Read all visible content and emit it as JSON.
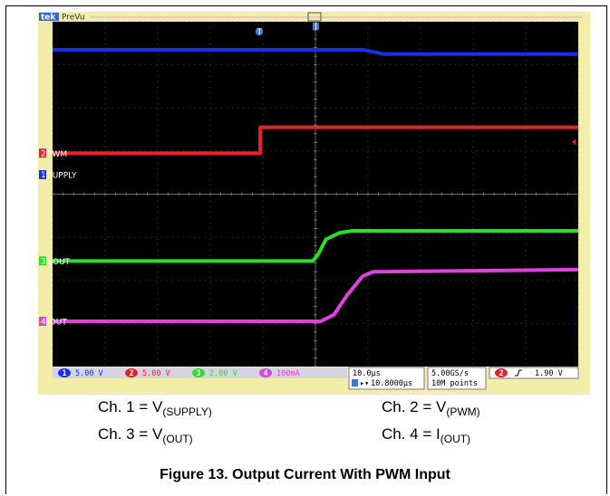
{
  "scope": {
    "brand": "tek",
    "mode": "PreVu",
    "trigger_marker": "T",
    "colors": {
      "screen_bg": "#000000",
      "bezel": "#f2eea8",
      "grid": "#6a6a6a",
      "ch1": "#1a2ee8",
      "ch2": "#e8202a",
      "ch3": "#28e028",
      "ch4": "#e040e0"
    },
    "channels": [
      {
        "id": "1",
        "label": "SUPPLY",
        "scale": "5.00 V",
        "color": "#1a2ee8"
      },
      {
        "id": "2",
        "label": "PWM",
        "scale": "5.00 V",
        "color": "#e8202a"
      },
      {
        "id": "3",
        "label": "VOUT",
        "scale": "2.00 V",
        "color": "#28e028"
      },
      {
        "id": "4",
        "label": "IOUT",
        "scale": "100mA",
        "color": "#e040e0"
      }
    ],
    "timebase": "10.0µs",
    "delay": "10.8000µs",
    "sample_rate": "5.00GS/s",
    "record_length": "10M points",
    "trigger_source": "2",
    "trigger_level": "1.90 V"
  },
  "chart_data": {
    "type": "line",
    "title": "",
    "x_divisions": 10,
    "y_divisions": 8,
    "x_unit": "div",
    "series": [
      {
        "name": "SUPPLY",
        "color": "#1a2ee8",
        "x": [
          0,
          5.9,
          6.3,
          10
        ],
        "y": [
          7.35,
          7.35,
          7.25,
          7.25
        ]
      },
      {
        "name": "PWM",
        "color": "#e8202a",
        "x": [
          0,
          3.95,
          3.95,
          10
        ],
        "y": [
          4.95,
          4.95,
          5.55,
          5.55
        ]
      },
      {
        "name": "VOUT",
        "color": "#28e028",
        "x": [
          0,
          4.95,
          5.05,
          5.2,
          5.45,
          5.7,
          10
        ],
        "y": [
          2.45,
          2.45,
          2.6,
          2.95,
          3.1,
          3.15,
          3.15
        ]
      },
      {
        "name": "IOUT",
        "color": "#e040e0",
        "x": [
          0,
          5.1,
          5.35,
          5.6,
          5.9,
          6.1,
          10
        ],
        "y": [
          1.05,
          1.05,
          1.2,
          1.65,
          2.1,
          2.2,
          2.25
        ]
      }
    ]
  },
  "legend": {
    "ch1_prefix": "Ch. 1 = V",
    "ch1_sub": "(SUPPLY)",
    "ch2_prefix": "Ch. 2 = V",
    "ch2_sub": "(PWM)",
    "ch3_prefix": "Ch. 3 = V",
    "ch3_sub": "(OUT)",
    "ch4_prefix": "Ch. 4 = I",
    "ch4_sub": "(OUT)"
  },
  "caption": "Figure 13. Output Current With PWM Input"
}
